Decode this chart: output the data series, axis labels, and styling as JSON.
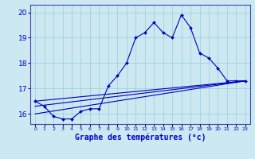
{
  "xlabel": "Graphe des températures (°c)",
  "x_hours": [
    0,
    1,
    2,
    3,
    4,
    5,
    6,
    7,
    8,
    9,
    10,
    11,
    12,
    13,
    14,
    15,
    16,
    17,
    18,
    19,
    20,
    21,
    22,
    23
  ],
  "temp_main": [
    16.5,
    16.3,
    15.9,
    15.8,
    15.8,
    16.1,
    16.2,
    16.2,
    17.1,
    17.5,
    18.0,
    19.0,
    19.2,
    19.6,
    19.2,
    19.0,
    19.9,
    19.4,
    18.4,
    18.2,
    17.8,
    17.3,
    17.3,
    17.3
  ],
  "line1_pts": [
    [
      0,
      16.5
    ],
    [
      23,
      17.3
    ]
  ],
  "line2_pts": [
    [
      0,
      16.3
    ],
    [
      23,
      17.3
    ]
  ],
  "line3_pts": [
    [
      0,
      16.0
    ],
    [
      23,
      17.3
    ]
  ],
  "ylim": [
    15.6,
    20.3
  ],
  "xlim": [
    -0.5,
    23.5
  ],
  "yticks": [
    16,
    17,
    18,
    19,
    20
  ],
  "background_color": "#cce8f0",
  "grid_color": "#99cce0",
  "line_color": "#0000bb",
  "marker_color": "#0000bb",
  "xlabel_color": "#0000cc",
  "tick_color": "#0000cc"
}
